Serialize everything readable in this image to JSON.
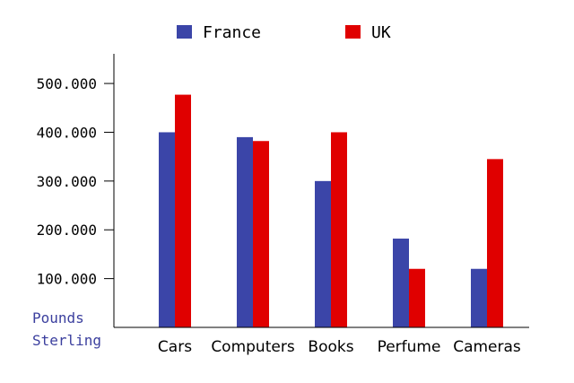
{
  "chart_data": {
    "type": "bar",
    "categories": [
      "Cars",
      "Computers",
      "Books",
      "Perfume",
      "Cameras"
    ],
    "series": [
      {
        "name": "France",
        "color": "#3b45a8",
        "values": [
          400000,
          390000,
          300000,
          182000,
          120000
        ]
      },
      {
        "name": "UK",
        "color": "#e00000",
        "values": [
          477000,
          382000,
          400000,
          120000,
          345000
        ]
      }
    ],
    "ylabel": "Pounds Sterling",
    "ylabel_lines": [
      "Pounds",
      "Sterling"
    ],
    "yticks": [
      100000,
      200000,
      300000,
      400000,
      500000
    ],
    "ytick_labels": [
      "100.000",
      "200.000",
      "300.000",
      "400.000",
      "500.000"
    ],
    "ylim": [
      0,
      570000
    ],
    "legend": "top",
    "grid": false,
    "ylabel_color": "#3b3f9e"
  }
}
